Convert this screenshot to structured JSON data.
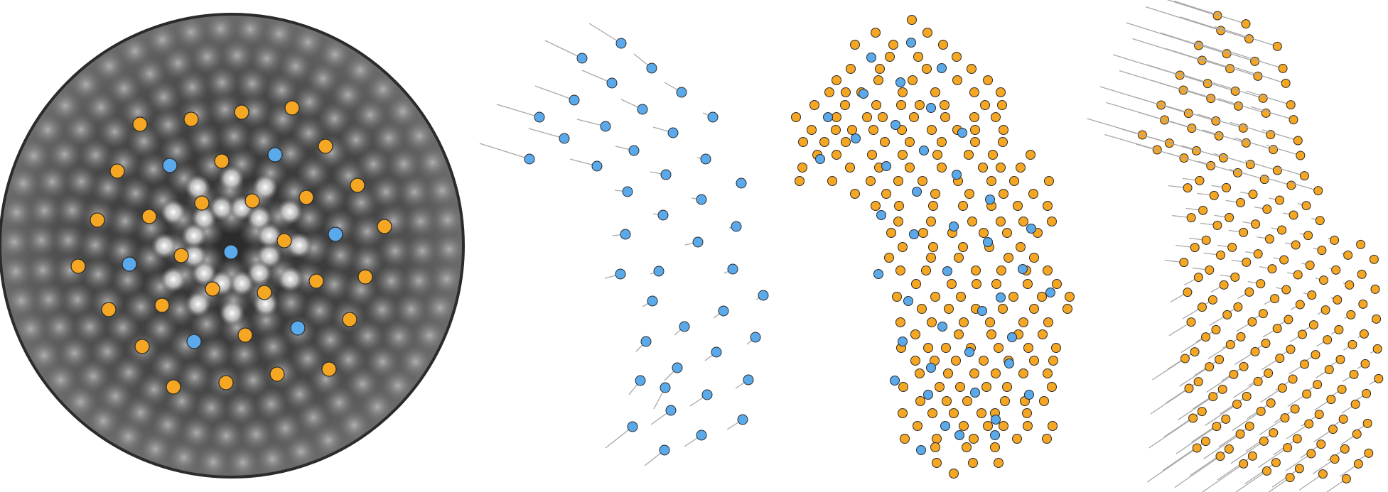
{
  "colors": {
    "orange": "#f5a623",
    "blue": "#5aa9ea",
    "tail": "#a8a8a8",
    "disk_border": "#2b2b2b"
  },
  "panels": [
    {
      "name": "image-disk-panel",
      "kind": "image",
      "description_icon": "quasicrystal-diffraction-image"
    },
    {
      "name": "blue-displacement-panel",
      "kind": "vectors",
      "point_color": "blue"
    },
    {
      "name": "mixed-lattice-panel",
      "kind": "lattice",
      "point_color": "orange+blue"
    },
    {
      "name": "orange-displacement-panel",
      "kind": "vectors",
      "point_color": "orange"
    }
  ]
}
